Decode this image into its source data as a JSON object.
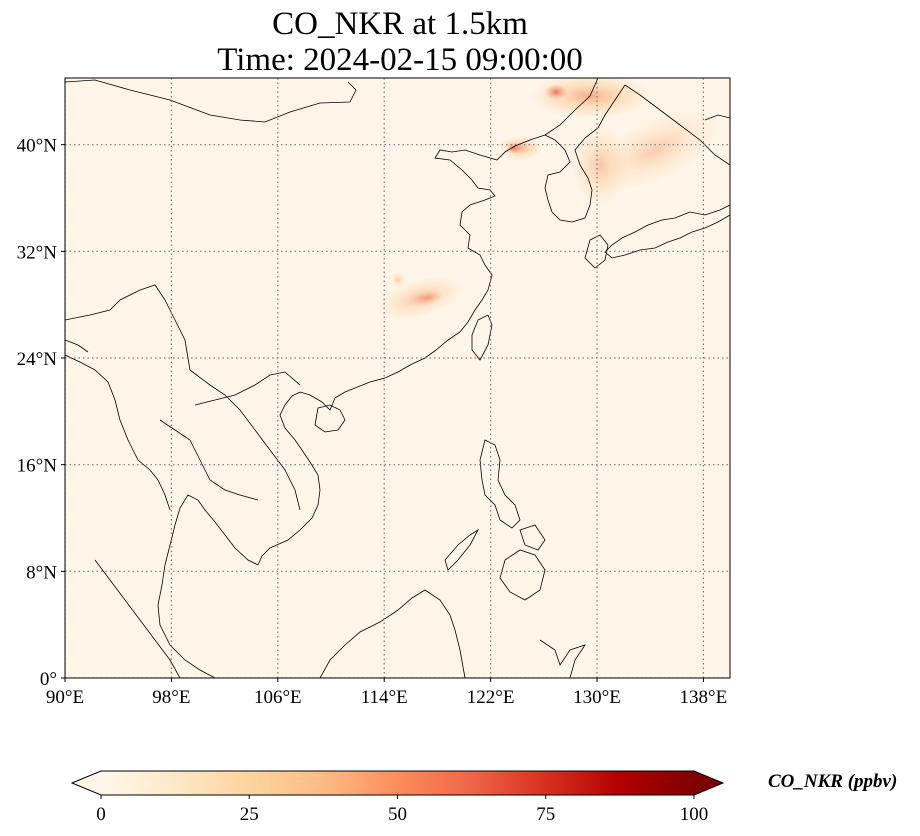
{
  "title": {
    "line1": "CO_NKR at 1.5km",
    "line2": "Time: 2024-02-15 09:00:00"
  },
  "map": {
    "extent": {
      "lon_min": 90,
      "lon_max": 140,
      "lat_min": 0,
      "lat_max": 45
    },
    "lon_ticks": [
      90,
      98,
      106,
      114,
      122,
      130,
      138
    ],
    "lat_ticks": [
      0,
      8,
      16,
      24,
      32,
      40
    ],
    "lon_tick_labels": [
      "90°E",
      "98°E",
      "106°E",
      "114°E",
      "122°E",
      "130°E",
      "138°E"
    ],
    "lat_tick_labels": [
      "0°",
      "8°N",
      "16°N",
      "24°N",
      "32°N",
      "40°N"
    ],
    "gridlines": true,
    "gridline_style": "dotted",
    "background_color": "#fff5e8",
    "coastline_color": "#000000"
  },
  "colorbar": {
    "label": "CO_NKR (ppbv)",
    "min": 0,
    "max": 100,
    "ticks": [
      0,
      25,
      50,
      75,
      100
    ],
    "tick_labels": [
      "0",
      "25",
      "50",
      "75",
      "100"
    ],
    "extend": "both",
    "colormap": "OrRd",
    "colors": [
      "#fff7ec",
      "#fee8c8",
      "#fdd49e",
      "#fdbb84",
      "#fc8d59",
      "#ef6548",
      "#d7301f",
      "#b30000",
      "#7f0000"
    ]
  }
}
